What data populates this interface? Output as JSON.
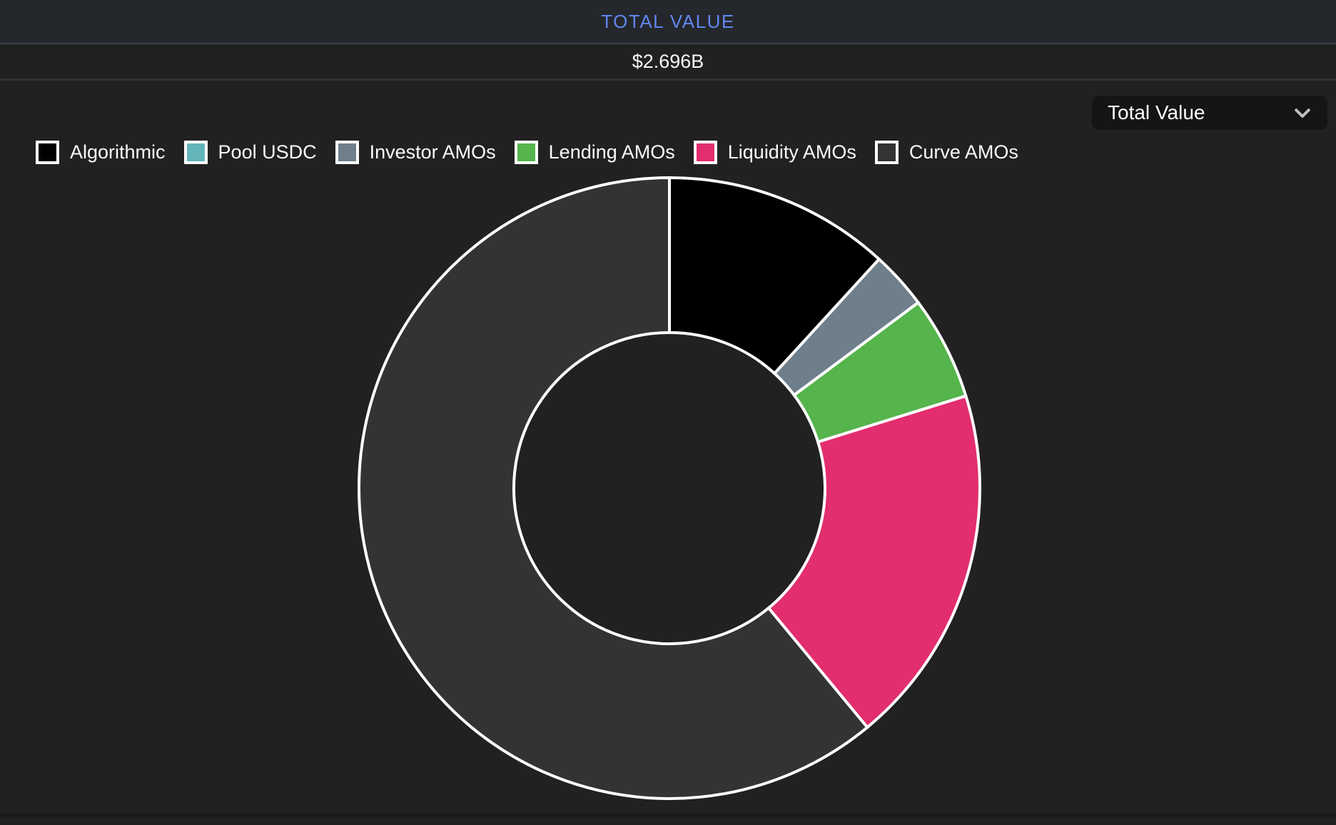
{
  "header": {
    "title": "TOTAL VALUE",
    "value": "$2.696B"
  },
  "controls": {
    "metric_dropdown": {
      "selected": "Total Value",
      "icon": "chevron-down-icon"
    }
  },
  "colors": {
    "background": "#212121",
    "title_bar_background": "#24272C",
    "title_text": "#6186EE",
    "dropdown_background": "#151517",
    "slice_border": "#ffffff"
  },
  "chart_data": {
    "type": "pie",
    "subtype": "donut",
    "title": "TOTAL VALUE",
    "total_value_label": "$2.696B",
    "start_angle_deg": 0,
    "direction": "clockwise",
    "legend_position": "top-left",
    "outer_radius_px": 435,
    "inner_radius_px": 218,
    "segments": [
      {
        "label": "Algorithmic",
        "color": "#000000",
        "percent": 11.8
      },
      {
        "label": "Pool USDC",
        "color": "#63B5B9",
        "percent": 0.0
      },
      {
        "label": "Investor AMOs",
        "color": "#6E7F8B",
        "percent": 3.0
      },
      {
        "label": "Lending AMOs",
        "color": "#55B44C",
        "percent": 5.4
      },
      {
        "label": "Liquidity AMOs",
        "color": "#E22D6E",
        "percent": 18.8
      },
      {
        "label": "Curve AMOs",
        "color": "#333333",
        "percent": 61.0
      }
    ]
  }
}
